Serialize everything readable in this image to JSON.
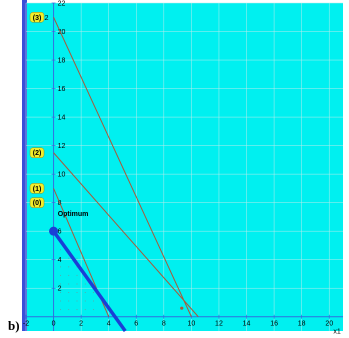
{
  "panel_label": "b)",
  "colors": {
    "plot_background": "#00f0f0",
    "left_band": "#3b4fd8",
    "grid": "#b8ecec",
    "axis": "#2e6fe0",
    "constraint_line": "#a85a3a",
    "objective_line": "#1a3fd6",
    "tag_fill": "#f2ee2a"
  },
  "chart_data": {
    "type": "line",
    "xlabel": "x1",
    "ylabel": "x2",
    "xlim": [
      -2,
      21
    ],
    "ylim": [
      -1,
      22
    ],
    "x_ticks": [
      "-2",
      "0",
      "2",
      "4",
      "6",
      "8",
      "10",
      "12",
      "14",
      "16",
      "18",
      "20"
    ],
    "y_ticks": [
      "2",
      "4",
      "6",
      "8",
      "10",
      "12",
      "14",
      "16",
      "18",
      "20",
      "22"
    ],
    "tick_values_x": [
      -2,
      0,
      2,
      4,
      6,
      8,
      10,
      12,
      14,
      16,
      18,
      20
    ],
    "tick_values_y": [
      2,
      4,
      6,
      8,
      10,
      12,
      14,
      16,
      18,
      20,
      22
    ],
    "constraints": [
      {
        "tag": "(3)",
        "points": [
          [
            0,
            21
          ],
          [
            10,
            0
          ]
        ]
      },
      {
        "tag": "(2)",
        "points": [
          [
            0,
            11.5
          ],
          [
            10.5,
            0
          ]
        ]
      },
      {
        "tag": "(1)",
        "points": [
          [
            0,
            9
          ],
          [
            4,
            0
          ]
        ]
      }
    ],
    "objective": {
      "tag": "(0)",
      "points": [
        [
          0,
          6
        ],
        [
          5.2,
          -1
        ]
      ]
    },
    "optimum": {
      "label": "Optimum",
      "point": [
        0,
        6
      ]
    },
    "intersection": {
      "point": [
        9.3,
        0.6
      ]
    }
  }
}
